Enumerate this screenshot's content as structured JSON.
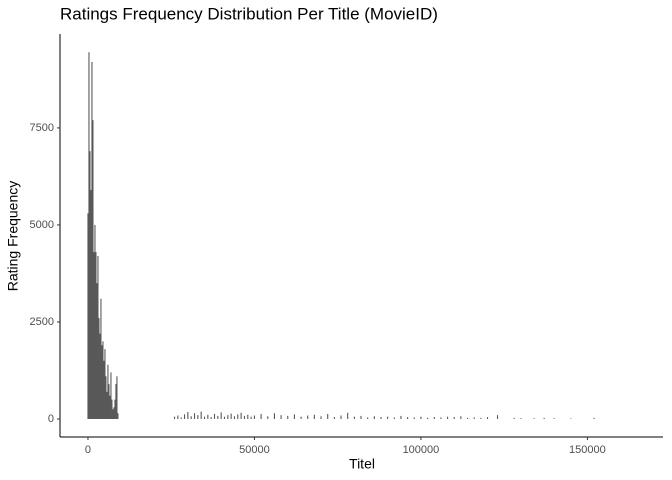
{
  "chart_data": {
    "type": "bar",
    "title": "Ratings Frequency Distribution Per Title (MovieID)",
    "x_label": "Titel",
    "y_label": "Rating Frequency",
    "color": "#595959",
    "x": [
      0,
      300,
      600,
      900,
      1200,
      1500,
      1800,
      2100,
      2400,
      2700,
      3000,
      3300,
      3600,
      3900,
      4200,
      4500,
      4800,
      5100,
      5400,
      5700,
      6000,
      6300,
      6600,
      6900,
      7200,
      7500,
      7800,
      8100,
      8400,
      8700,
      9000,
      26000,
      27000,
      28000,
      29000,
      30000,
      31000,
      32000,
      33000,
      34000,
      35000,
      36000,
      37000,
      38000,
      39000,
      40000,
      41000,
      42000,
      43000,
      44000,
      45000,
      46000,
      47000,
      48000,
      49000,
      50000,
      52000,
      54000,
      56000,
      58000,
      60000,
      62000,
      64000,
      66000,
      68000,
      70000,
      72000,
      74000,
      76000,
      78000,
      80000,
      82000,
      84000,
      86000,
      88000,
      90000,
      92000,
      94000,
      96000,
      98000,
      100000,
      102000,
      104000,
      106000,
      108000,
      110000,
      112000,
      114000,
      116000,
      118000,
      120000,
      123000,
      128000,
      130000,
      134000,
      137000,
      140000,
      145000,
      152000
    ],
    "values": [
      5300,
      9450,
      6900,
      5900,
      9200,
      7700,
      4300,
      5000,
      4300,
      3500,
      4200,
      2600,
      2200,
      3100,
      1900,
      2000,
      1500,
      1800,
      1100,
      700,
      1400,
      900,
      600,
      1200,
      500,
      250,
      300,
      500,
      900,
      1100,
      150,
      60,
      90,
      40,
      120,
      180,
      70,
      150,
      100,
      190,
      60,
      110,
      50,
      130,
      80,
      170,
      60,
      100,
      140,
      70,
      120,
      160,
      80,
      110,
      60,
      90,
      130,
      70,
      150,
      100,
      80,
      120,
      60,
      90,
      110,
      70,
      130,
      50,
      90,
      160,
      60,
      80,
      40,
      70,
      50,
      60,
      40,
      80,
      50,
      40,
      60,
      30,
      50,
      40,
      60,
      50,
      70,
      30,
      40,
      30,
      50,
      100,
      30,
      20,
      20,
      30,
      20,
      15,
      30
    ],
    "xlim": [
      -8400,
      172700
    ],
    "xticks": [
      0,
      50000,
      100000,
      150000
    ],
    "ylim": [
      -464,
      9920
    ],
    "yticks": [
      0,
      2500,
      5000,
      7500
    ]
  }
}
